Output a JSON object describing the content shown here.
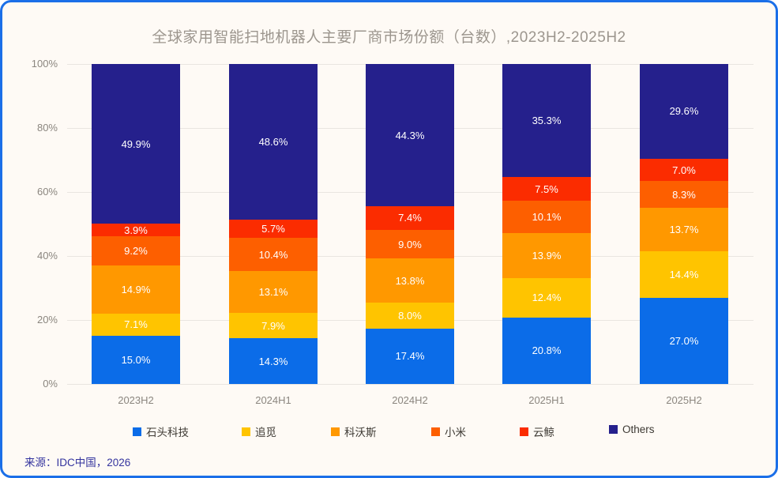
{
  "title": "全球家用智能扫地机器人主要厂商市场份额（台数）,2023H2-2025H2",
  "source": "来源：IDC中国，2026",
  "colors": {
    "card_border": "#1b6fe8",
    "card_background": "#fefaf5",
    "gridline": "#e9e5e0",
    "axis_text": "#8b867f",
    "title_text": "#9c968e",
    "legend_text": "#3d3933",
    "source_text": "#34349e",
    "bar_label_text": "#ffffff"
  },
  "chart_data": {
    "type": "bar",
    "stacked": true,
    "title": "全球家用智能扫地机器人主要厂商市场份额（台数）,2023H2-2025H2",
    "categories": [
      "2023H2",
      "2024H1",
      "2024H2",
      "2025H1",
      "2025H2"
    ],
    "series": [
      {
        "name": "石头科技",
        "color": "#0b6ce8",
        "values": [
          15.0,
          14.3,
          17.4,
          20.8,
          27.0
        ]
      },
      {
        "name": "追觅",
        "color": "#ffc400",
        "values": [
          7.1,
          7.9,
          8.0,
          12.4,
          14.4
        ]
      },
      {
        "name": "科沃斯",
        "color": "#ff9800",
        "values": [
          14.9,
          13.1,
          13.8,
          13.9,
          13.7
        ]
      },
      {
        "name": "小米",
        "color": "#fd5f00",
        "values": [
          9.2,
          10.4,
          9.0,
          10.1,
          8.3
        ]
      },
      {
        "name": "云鲸",
        "color": "#fb2c00",
        "values": [
          3.9,
          5.7,
          7.4,
          7.5,
          7.0
        ]
      },
      {
        "name": "Others",
        "color": "#25208c",
        "values": [
          49.9,
          48.6,
          44.3,
          35.3,
          29.6
        ]
      }
    ],
    "value_label_format": "one_decimal_percent",
    "xlabel": "",
    "ylabel": "",
    "ylim": [
      0,
      100
    ],
    "yticks": [
      "0%",
      "20%",
      "40%",
      "60%",
      "80%",
      "100%"
    ],
    "grid": true,
    "legend_position": "bottom"
  }
}
